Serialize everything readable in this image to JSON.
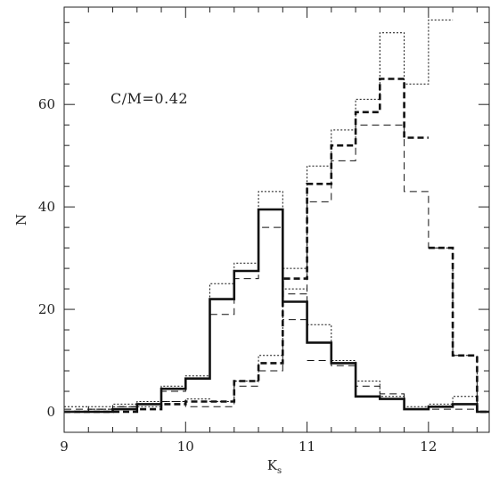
{
  "chart_data": {
    "type": "line",
    "subtype": "step-histogram",
    "title": "",
    "annotation": "C/M=0.42",
    "xlabel": "K",
    "xlabel_sub": "s",
    "ylabel": "N",
    "xlim": [
      9,
      12.5
    ],
    "ylim": [
      -4,
      79
    ],
    "xticks": [
      9,
      10,
      11,
      12
    ],
    "yticks": [
      0,
      20,
      40,
      60
    ],
    "xtick_labels": [
      "9",
      "10",
      "11",
      "12"
    ],
    "ytick_labels": [
      "0",
      "20",
      "40",
      "60"
    ],
    "bin_edges": [
      9.0,
      9.2,
      9.4,
      9.6,
      9.8,
      10.0,
      10.2,
      10.4,
      10.6,
      10.8,
      11.0,
      11.2,
      11.4,
      11.6,
      11.8,
      12.0,
      12.2,
      12.4,
      12.5
    ],
    "grid": false,
    "series": [
      {
        "style": "solid-thick",
        "counts": [
          0,
          0,
          0.5,
          1.5,
          4.5,
          6.5,
          22,
          27.5,
          39.5,
          21.5,
          13.5,
          9.5,
          3,
          2.5,
          0.5,
          1,
          1.5,
          0
        ]
      },
      {
        "style": "dashed-thick",
        "counts": [
          0,
          0,
          0,
          0.5,
          1.5,
          2,
          2,
          6,
          9.5,
          26,
          44.5,
          52,
          58.5,
          65,
          53.5,
          null,
          null,
          null
        ]
      },
      {
        "style": "dotted-thin",
        "counts": [
          1,
          0.5,
          0.5,
          1,
          2,
          2.5,
          2,
          6,
          11,
          28,
          48,
          55,
          61,
          74,
          64,
          76.5,
          null,
          null
        ]
      },
      {
        "style": "dashed-thin",
        "counts": [
          0.5,
          0.5,
          1,
          1.5,
          2,
          1,
          1,
          5,
          8,
          18,
          41,
          49,
          56,
          56,
          43,
          32,
          11,
          0
        ]
      },
      {
        "style": "dashed-thick",
        "counts": [
          null,
          null,
          null,
          null,
          null,
          null,
          null,
          null,
          null,
          null,
          null,
          null,
          null,
          null,
          null,
          32,
          11,
          0
        ]
      },
      {
        "style": "dotted-thin",
        "counts": [
          null,
          null,
          null,
          null,
          null,
          null,
          null,
          null,
          null,
          null,
          17,
          10,
          6,
          3,
          1,
          1.5,
          3,
          0
        ]
      },
      {
        "style": "dashed-thin",
        "counts": [
          null,
          null,
          null,
          null,
          null,
          null,
          null,
          null,
          null,
          null,
          10,
          9,
          5,
          3.5,
          0.5,
          0.5,
          0.5,
          0
        ]
      },
      {
        "style": "dotted-thin",
        "counts": [
          0,
          1,
          1.5,
          2,
          5,
          7,
          25,
          29,
          43,
          24,
          null,
          null,
          null,
          null,
          null,
          null,
          null,
          null
        ]
      },
      {
        "style": "dashed-thin",
        "counts": [
          0,
          0.5,
          1,
          1.5,
          4,
          6.5,
          19,
          26,
          36,
          23,
          null,
          null,
          null,
          null,
          null,
          null,
          null,
          null
        ]
      }
    ]
  }
}
